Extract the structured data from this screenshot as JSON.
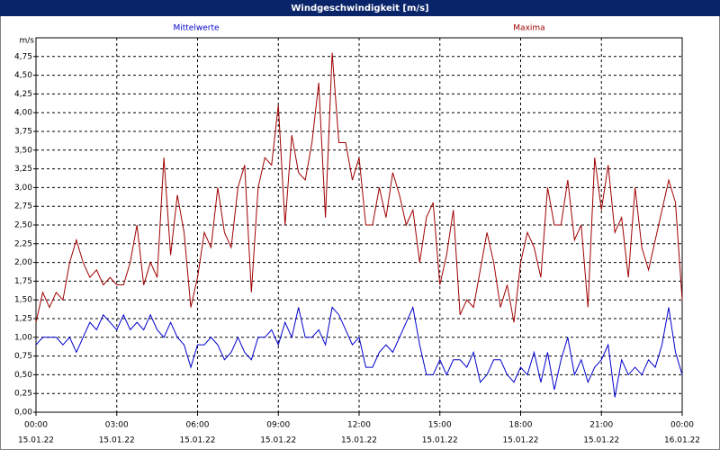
{
  "chart_data": {
    "type": "line",
    "title": "Windgeschwindigkeit [m/s]",
    "y_label": "m/s",
    "xlim": [
      0,
      24
    ],
    "ylim": [
      0,
      5
    ],
    "grid": true,
    "xticks": [
      {
        "value": 0,
        "label": [
          "00:00",
          "15.01.22"
        ]
      },
      {
        "value": 3,
        "label": [
          "03:00",
          "15.01.22"
        ]
      },
      {
        "value": 6,
        "label": [
          "06:00",
          "15.01.22"
        ]
      },
      {
        "value": 9,
        "label": [
          "09:00",
          "15.01.22"
        ]
      },
      {
        "value": 12,
        "label": [
          "12:00",
          "15.01.22"
        ]
      },
      {
        "value": 15,
        "label": [
          "15:00",
          "15.01.22"
        ]
      },
      {
        "value": 18,
        "label": [
          "18:00",
          "15.01.22"
        ]
      },
      {
        "value": 21,
        "label": [
          "21:00",
          "15.01.22"
        ]
      },
      {
        "value": 24,
        "label": [
          "00:00",
          "16.01.22"
        ]
      }
    ],
    "yticks": [
      {
        "value": 0,
        "label": "0,00"
      },
      {
        "value": 0.25,
        "label": "0,25"
      },
      {
        "value": 0.5,
        "label": "0,50"
      },
      {
        "value": 0.75,
        "label": "0,75"
      },
      {
        "value": 1,
        "label": "1,00"
      },
      {
        "value": 1.25,
        "label": "1,25"
      },
      {
        "value": 1.5,
        "label": "1,50"
      },
      {
        "value": 1.75,
        "label": "1,75"
      },
      {
        "value": 2,
        "label": "2,00"
      },
      {
        "value": 2.25,
        "label": "2,25"
      },
      {
        "value": 2.5,
        "label": "2,50"
      },
      {
        "value": 2.75,
        "label": "2,75"
      },
      {
        "value": 3,
        "label": "3,00"
      },
      {
        "value": 3.25,
        "label": "3,25"
      },
      {
        "value": 3.5,
        "label": "3,50"
      },
      {
        "value": 3.75,
        "label": "3,75"
      },
      {
        "value": 4,
        "label": "4,00"
      },
      {
        "value": 4.25,
        "label": "4,25"
      },
      {
        "value": 4.5,
        "label": "4,50"
      },
      {
        "value": 4.75,
        "label": "4,75"
      }
    ],
    "x": [
      0,
      0.25,
      0.5,
      0.75,
      1,
      1.25,
      1.5,
      1.75,
      2,
      2.25,
      2.5,
      2.75,
      3,
      3.25,
      3.5,
      3.75,
      4,
      4.25,
      4.5,
      4.75,
      5,
      5.25,
      5.5,
      5.75,
      6,
      6.25,
      6.5,
      6.75,
      7,
      7.25,
      7.5,
      7.75,
      8,
      8.25,
      8.5,
      8.75,
      9,
      9.25,
      9.5,
      9.75,
      10,
      10.25,
      10.5,
      10.75,
      11,
      11.25,
      11.5,
      11.75,
      12,
      12.25,
      12.5,
      12.75,
      13,
      13.25,
      13.5,
      13.75,
      14,
      14.25,
      14.5,
      14.75,
      15,
      15.25,
      15.5,
      15.75,
      16,
      16.25,
      16.5,
      16.75,
      17,
      17.25,
      17.5,
      17.75,
      18,
      18.25,
      18.5,
      18.75,
      19,
      19.25,
      19.5,
      19.75,
      20,
      20.25,
      20.5,
      20.75,
      21,
      21.25,
      21.5,
      21.75,
      22,
      22.25,
      22.5,
      22.75,
      23,
      23.25,
      23.5,
      23.75,
      24
    ],
    "series": [
      {
        "name": "Mittelwerte",
        "color": "#0000cc",
        "values": [
          0.9,
          1.0,
          1.0,
          1.0,
          0.9,
          1.0,
          0.8,
          1.0,
          1.2,
          1.1,
          1.3,
          1.2,
          1.1,
          1.3,
          1.1,
          1.2,
          1.1,
          1.3,
          1.1,
          1.0,
          1.2,
          1.0,
          0.9,
          0.6,
          0.9,
          0.9,
          1.0,
          0.9,
          0.7,
          0.8,
          1.0,
          0.8,
          0.7,
          1.0,
          1.0,
          1.1,
          0.9,
          1.2,
          1.0,
          1.4,
          1.0,
          1.0,
          1.1,
          0.9,
          1.4,
          1.3,
          1.1,
          0.9,
          1.0,
          0.6,
          0.6,
          0.8,
          0.9,
          0.8,
          1.0,
          1.2,
          1.4,
          0.9,
          0.5,
          0.5,
          0.7,
          0.5,
          0.7,
          0.7,
          0.6,
          0.8,
          0.4,
          0.5,
          0.7,
          0.7,
          0.5,
          0.4,
          0.6,
          0.5,
          0.8,
          0.4,
          0.8,
          0.3,
          0.7,
          1.0,
          0.5,
          0.7,
          0.4,
          0.6,
          0.7,
          0.9,
          0.2,
          0.7,
          0.5,
          0.6,
          0.5,
          0.7,
          0.6,
          0.9,
          1.4,
          0.8,
          0.5
        ]
      },
      {
        "name": "Maxima",
        "color": "#a00000",
        "values": [
          1.2,
          1.6,
          1.4,
          1.6,
          1.5,
          2.0,
          2.3,
          2.0,
          1.8,
          1.9,
          1.7,
          1.8,
          1.7,
          1.7,
          2.0,
          2.5,
          1.7,
          2.0,
          1.8,
          3.4,
          2.1,
          2.9,
          2.4,
          1.4,
          1.8,
          2.4,
          2.2,
          3.0,
          2.4,
          2.2,
          3.0,
          3.3,
          1.6,
          3.0,
          3.4,
          3.3,
          4.1,
          2.5,
          3.7,
          3.2,
          3.1,
          3.6,
          4.4,
          2.6,
          4.8,
          3.6,
          3.6,
          3.1,
          3.4,
          2.5,
          2.5,
          3.0,
          2.6,
          3.2,
          2.9,
          2.5,
          2.7,
          2.0,
          2.6,
          2.8,
          1.7,
          2.1,
          2.7,
          1.3,
          1.5,
          1.4,
          1.9,
          2.4,
          2.0,
          1.4,
          1.7,
          1.2,
          2.0,
          2.4,
          2.2,
          1.8,
          3.0,
          2.5,
          2.5,
          3.1,
          2.3,
          2.5,
          1.4,
          3.4,
          2.7,
          3.3,
          2.4,
          2.6,
          1.8,
          3.0,
          2.2,
          1.9,
          2.3,
          2.7,
          3.1,
          2.8,
          1.5
        ]
      }
    ]
  }
}
